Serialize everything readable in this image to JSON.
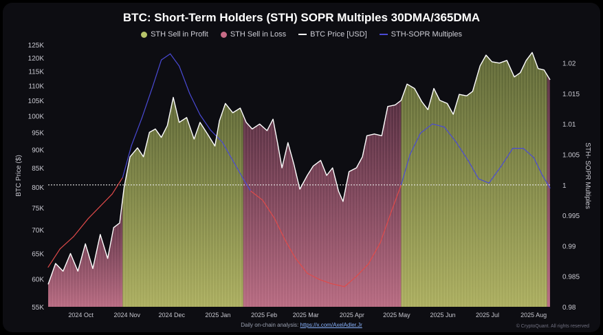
{
  "chart_data": {
    "type": "area",
    "title": "BTC: Short-Term Holders (STH) SOPR Multiples 30DMA/365DMA",
    "legend": [
      {
        "name": "STH Sell in Profit",
        "color": "#b7c46a",
        "marker": "dot"
      },
      {
        "name": "STH Sell in Loss",
        "color": "#c76b86",
        "marker": "dot"
      },
      {
        "name": "BTC Price [USD]",
        "color": "#ffffff",
        "marker": "line"
      },
      {
        "name": "STH-SOPR Multiples",
        "color": "#4a4ad6",
        "marker": "line"
      }
    ],
    "ylabel": "BTC Price ($)",
    "y2label": "STH- SOPR Multiples",
    "y_ticks": [
      "55K",
      "60K",
      "65K",
      "70K",
      "75K",
      "80K",
      "85K",
      "90K",
      "95K",
      "100K",
      "105K",
      "110K",
      "115K",
      "120K",
      "125K"
    ],
    "y_tick_values": [
      55000,
      60000,
      65000,
      70000,
      75000,
      80000,
      85000,
      90000,
      95000,
      100000,
      105000,
      110000,
      115000,
      120000,
      125000
    ],
    "y2_ticks": [
      "0.98",
      "0.985",
      "0.99",
      "0.995",
      "1",
      "1.005",
      "1.01",
      "1.015",
      "1.02"
    ],
    "y2_tick_values": [
      0.98,
      0.985,
      0.99,
      0.995,
      1,
      1.005,
      1.01,
      1.015,
      1.02
    ],
    "ylim": [
      55000,
      125000
    ],
    "y2lim": [
      0.98,
      1.023
    ],
    "y_scale": "log",
    "x_ticks": [
      "2024 Oct",
      "2024 Nov",
      "2024 Dec",
      "2025 Jan",
      "2025 Feb",
      "2025 Mar",
      "2025 Apr",
      "2025 May",
      "2025 Jun",
      "2025 Jul",
      "2025 Aug"
    ],
    "x_tick_dates": [
      "2024-10-15",
      "2024-11-15",
      "2024-12-15",
      "2025-01-15",
      "2025-02-15",
      "2025-03-15",
      "2025-04-15",
      "2025-05-15",
      "2025-06-15",
      "2025-07-15",
      "2025-08-15"
    ],
    "x_range": [
      "2024-09-23",
      "2025-08-26"
    ],
    "threshold": 1,
    "series": [
      {
        "name": "BTC Price [USD]",
        "color": "#ffffff",
        "points": [
          [
            "2024-09-23",
            59000
          ],
          [
            "2024-09-28",
            63000
          ],
          [
            "2024-10-03",
            61500
          ],
          [
            "2024-10-08",
            65000
          ],
          [
            "2024-10-13",
            61500
          ],
          [
            "2024-10-18",
            67000
          ],
          [
            "2024-10-23",
            62000
          ],
          [
            "2024-10-28",
            69000
          ],
          [
            "2024-11-02",
            64000
          ],
          [
            "2024-11-06",
            70500
          ],
          [
            "2024-11-10",
            71500
          ],
          [
            "2024-11-13",
            80000
          ],
          [
            "2024-11-17",
            88000
          ],
          [
            "2024-11-22",
            90500
          ],
          [
            "2024-11-26",
            88000
          ],
          [
            "2024-11-30",
            95000
          ],
          [
            "2024-12-04",
            96000
          ],
          [
            "2024-12-08",
            93500
          ],
          [
            "2024-12-12",
            97000
          ],
          [
            "2024-12-16",
            106000
          ],
          [
            "2024-12-20",
            98000
          ],
          [
            "2024-12-25",
            99500
          ],
          [
            "2024-12-30",
            93000
          ],
          [
            "2025-01-03",
            98000
          ],
          [
            "2025-01-08",
            94500
          ],
          [
            "2025-01-13",
            91000
          ],
          [
            "2025-01-16",
            98500
          ],
          [
            "2025-01-20",
            104000
          ],
          [
            "2025-01-25",
            101000
          ],
          [
            "2025-01-30",
            102500
          ],
          [
            "2025-02-03",
            98000
          ],
          [
            "2025-02-07",
            96000
          ],
          [
            "2025-02-12",
            97500
          ],
          [
            "2025-02-17",
            95500
          ],
          [
            "2025-02-21",
            99000
          ],
          [
            "2025-02-24",
            92000
          ],
          [
            "2025-02-27",
            85000
          ],
          [
            "2025-03-03",
            92000
          ],
          [
            "2025-03-07",
            86000
          ],
          [
            "2025-03-11",
            79500
          ],
          [
            "2025-03-16",
            83000
          ],
          [
            "2025-03-20",
            85500
          ],
          [
            "2025-03-25",
            87000
          ],
          [
            "2025-03-29",
            83000
          ],
          [
            "2025-04-02",
            85000
          ],
          [
            "2025-04-06",
            79000
          ],
          [
            "2025-04-09",
            76500
          ],
          [
            "2025-04-13",
            84000
          ],
          [
            "2025-04-18",
            85000
          ],
          [
            "2025-04-22",
            88000
          ],
          [
            "2025-04-25",
            94000
          ],
          [
            "2025-04-30",
            94500
          ],
          [
            "2025-05-05",
            94000
          ],
          [
            "2025-05-09",
            103000
          ],
          [
            "2025-05-14",
            103500
          ],
          [
            "2025-05-18",
            105000
          ],
          [
            "2025-05-22",
            110500
          ],
          [
            "2025-05-27",
            109000
          ],
          [
            "2025-06-01",
            104500
          ],
          [
            "2025-06-05",
            102000
          ],
          [
            "2025-06-09",
            109000
          ],
          [
            "2025-06-13",
            105000
          ],
          [
            "2025-06-18",
            104000
          ],
          [
            "2025-06-22",
            100500
          ],
          [
            "2025-06-26",
            107000
          ],
          [
            "2025-07-01",
            106500
          ],
          [
            "2025-07-05",
            108000
          ],
          [
            "2025-07-10",
            117000
          ],
          [
            "2025-07-14",
            121000
          ],
          [
            "2025-07-18",
            118500
          ],
          [
            "2025-07-23",
            118000
          ],
          [
            "2025-07-28",
            119000
          ],
          [
            "2025-08-02",
            113000
          ],
          [
            "2025-08-06",
            114500
          ],
          [
            "2025-08-10",
            119000
          ],
          [
            "2025-08-14",
            122000
          ],
          [
            "2025-08-18",
            116000
          ],
          [
            "2025-08-22",
            115500
          ],
          [
            "2025-08-26",
            112000
          ]
        ]
      },
      {
        "name": "STH-SOPR Multiples",
        "color_above": "#4a4ad6",
        "color_below": "#e04a4a",
        "points": [
          [
            "2024-09-23",
            0.9865
          ],
          [
            "2024-10-01",
            0.9895
          ],
          [
            "2024-10-10",
            0.9915
          ],
          [
            "2024-10-20",
            0.9945
          ],
          [
            "2024-10-28",
            0.9965
          ],
          [
            "2024-11-05",
            0.9985
          ],
          [
            "2024-11-12",
            1.0012
          ],
          [
            "2024-11-18",
            1.0065
          ],
          [
            "2024-11-25",
            1.011
          ],
          [
            "2024-12-02",
            1.016
          ],
          [
            "2024-12-08",
            1.0205
          ],
          [
            "2024-12-14",
            1.0215
          ],
          [
            "2024-12-20",
            1.0195
          ],
          [
            "2024-12-27",
            1.015
          ],
          [
            "2025-01-03",
            1.0115
          ],
          [
            "2025-01-10",
            1.009
          ],
          [
            "2025-01-18",
            1.007
          ],
          [
            "2025-01-25",
            1.004
          ],
          [
            "2025-02-01",
            1.001
          ],
          [
            "2025-02-06",
            0.999
          ],
          [
            "2025-02-14",
            0.9975
          ],
          [
            "2025-02-22",
            0.9945
          ],
          [
            "2025-03-01",
            0.991
          ],
          [
            "2025-03-08",
            0.988
          ],
          [
            "2025-03-16",
            0.9855
          ],
          [
            "2025-03-24",
            0.9845
          ],
          [
            "2025-04-01",
            0.9838
          ],
          [
            "2025-04-10",
            0.9833
          ],
          [
            "2025-04-18",
            0.985
          ],
          [
            "2025-04-26",
            0.987
          ],
          [
            "2025-05-04",
            0.9905
          ],
          [
            "2025-05-12",
            0.996
          ],
          [
            "2025-05-18",
            1.0
          ],
          [
            "2025-05-24",
            1.005
          ],
          [
            "2025-05-31",
            1.0085
          ],
          [
            "2025-06-08",
            1.01
          ],
          [
            "2025-06-16",
            1.0095
          ],
          [
            "2025-06-24",
            1.007
          ],
          [
            "2025-07-02",
            1.004
          ],
          [
            "2025-07-09",
            1.001
          ],
          [
            "2025-07-16",
            1.0003
          ],
          [
            "2025-07-24",
            1.003
          ],
          [
            "2025-08-01",
            1.006
          ],
          [
            "2025-08-08",
            1.006
          ],
          [
            "2025-08-15",
            1.0045
          ],
          [
            "2025-08-21",
            1.0015
          ],
          [
            "2025-08-26",
            0.9995
          ]
        ]
      }
    ],
    "regions": [
      {
        "label": "STH Sell in Loss",
        "start": "2024-09-23",
        "end": "2024-11-12"
      },
      {
        "label": "STH Sell in Profit",
        "start": "2024-11-12",
        "end": "2025-02-01"
      },
      {
        "label": "STH Sell in Loss",
        "start": "2025-02-01",
        "end": "2025-05-18"
      },
      {
        "label": "STH Sell in Profit",
        "start": "2025-05-18",
        "end": "2025-08-24"
      },
      {
        "label": "STH Sell in Loss",
        "start": "2025-08-24",
        "end": "2025-08-26"
      }
    ]
  },
  "footer": {
    "prefix": "Daily on-chain analysis:",
    "link": "https://x.com/AxelAdler.Jr"
  },
  "credit": "© CryptoQuant. All rights reserved"
}
